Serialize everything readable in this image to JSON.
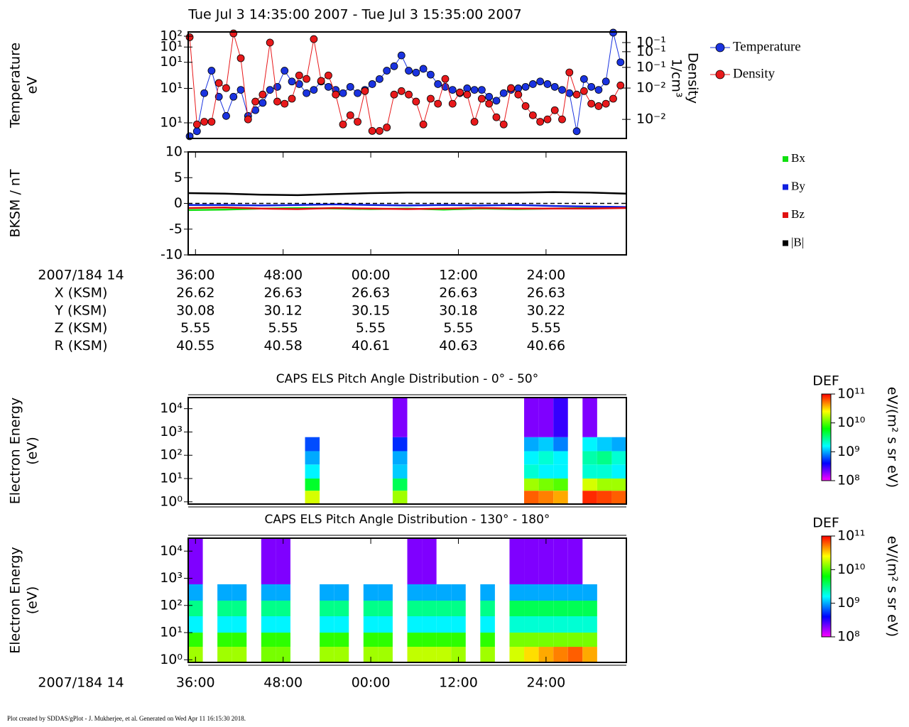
{
  "title": "Tue Jul 3 14:35:00 2007 - Tue Jul 3 15:35:00 2007",
  "footer": "Plot created by SDDAS/gPlot - J. Mukherjee, et al.  Generated on Wed Apr 11 16:15:30 2018.",
  "ephemeris": {
    "time_label": "2007/184 14",
    "rows": [
      {
        "label": "X (KSM)",
        "values": [
          26.62,
          26.63,
          26.63,
          26.63,
          26.63
        ]
      },
      {
        "label": "Y (KSM)",
        "values": [
          30.08,
          30.12,
          30.15,
          30.18,
          30.22
        ]
      },
      {
        "label": "Z (KSM)",
        "values": [
          5.55,
          5.55,
          5.55,
          5.55,
          5.55
        ]
      },
      {
        "label": "R (KSM)",
        "values": [
          40.55,
          40.58,
          40.61,
          40.63,
          40.66
        ]
      }
    ]
  },
  "chart_data": [
    {
      "type": "line",
      "ylabel": [
        "Temperature",
        "eV"
      ],
      "y2label": [
        "Density",
        "1/cm³"
      ],
      "ylog": true,
      "y2log": true,
      "markers": true,
      "legend": "outside-right",
      "xlim": [
        35,
        95
      ],
      "ylim": [
        6.6,
        112
      ],
      "y2lim": [
        0.0043,
        0.48
      ],
      "yticks": [
        {
          "value": 10,
          "label": "10¹"
        },
        {
          "value": 25,
          "label": "10¹"
        },
        {
          "value": 50,
          "label": "10¹"
        },
        {
          "value": 75,
          "label": "10¹"
        },
        {
          "value": 100,
          "label": "10²"
        }
      ],
      "y2ticks": [
        {
          "value": 0.01,
          "label": "10⁻²"
        },
        {
          "value": 0.04,
          "label": "10⁻²"
        },
        {
          "value": 0.1,
          "label": "10⁻¹"
        },
        {
          "value": 0.2,
          "label": "10⁻¹"
        },
        {
          "value": 0.3,
          "label": "10⁻¹"
        }
      ],
      "x": [
        35.2,
        36.2,
        37.2,
        38.2,
        39.2,
        40.2,
        41.2,
        42.2,
        43.2,
        44.2,
        45.2,
        46.2,
        47.2,
        48.2,
        49.2,
        50.2,
        51.2,
        52.2,
        53.2,
        54.2,
        55.2,
        56.2,
        57.2,
        58.2,
        59.2,
        60.2,
        61.2,
        62.2,
        63.2,
        64.2,
        65.2,
        66.2,
        67.2,
        68.2,
        69.2,
        70.2,
        71.2,
        72.2,
        73.2,
        74.2,
        75.2,
        76.2,
        77.2,
        78.2,
        79.2,
        80.2,
        81.2,
        82.2,
        83.2,
        84.2,
        85.2,
        86.2,
        87.2,
        88.2,
        89.2,
        90.2,
        91.2,
        92.2,
        93.2,
        94.2
      ],
      "series": [
        {
          "name": "Temperature",
          "color": "#1a33e0",
          "values": [
            7,
            8,
            22,
            40,
            20,
            12,
            20,
            24,
            12,
            14,
            17,
            24,
            26,
            40,
            30,
            28,
            22,
            24,
            30,
            26,
            24,
            22,
            26,
            22,
            24,
            28,
            32,
            40,
            45,
            60,
            40,
            38,
            42,
            36,
            28,
            26,
            24,
            22,
            25,
            24,
            24,
            20,
            18,
            22,
            24,
            25,
            26,
            28,
            30,
            28,
            26,
            24,
            22,
            8,
            32,
            26,
            24,
            30,
            110,
            50
          ]
        },
        {
          "name": "Density",
          "color": "#e8191b",
          "axis": "y2",
          "values": [
            0.38,
            0.008,
            0.009,
            0.009,
            0.05,
            0.04,
            0.45,
            0.15,
            0.01,
            0.022,
            0.03,
            0.3,
            0.022,
            0.02,
            0.025,
            0.07,
            0.06,
            0.35,
            0.055,
            0.07,
            0.03,
            0.008,
            0.012,
            0.009,
            0.035,
            0.006,
            0.006,
            0.007,
            0.03,
            0.035,
            0.03,
            0.022,
            0.008,
            0.025,
            0.02,
            0.06,
            0.02,
            0.033,
            0.03,
            0.009,
            0.025,
            0.02,
            0.011,
            0.008,
            0.04,
            0.03,
            0.018,
            0.012,
            0.009,
            0.01,
            0.015,
            0.01,
            0.08,
            0.03,
            0.035,
            0.02,
            0.018,
            0.02,
            0.025,
            0.045
          ]
        }
      ]
    },
    {
      "type": "line",
      "ylabel": [
        "BKSM / nT"
      ],
      "zero_line": true,
      "legend": "outside-right",
      "xlim": [
        35,
        95
      ],
      "ylim": [
        -10,
        10
      ],
      "yticks": [
        -10,
        -5,
        0,
        5,
        10
      ],
      "xticks": [
        {
          "value": 36,
          "label": "36:00"
        },
        {
          "value": 48,
          "label": "48:00"
        },
        {
          "value": 60,
          "label": "00:00"
        },
        {
          "value": 72,
          "label": "12:00"
        },
        {
          "value": 84,
          "label": "24:00"
        }
      ],
      "x": [
        35,
        40,
        45,
        50,
        55,
        60,
        65,
        70,
        75,
        80,
        85,
        90,
        95
      ],
      "series": [
        {
          "name": "Bx",
          "color": "#10e010",
          "values": [
            -1.3,
            -1.2,
            -1.0,
            -0.9,
            -1.0,
            -1.1,
            -1.0,
            -1.2,
            -1.0,
            -1.1,
            -1.0,
            -0.9,
            -0.8
          ]
        },
        {
          "name": "By",
          "color": "#1020e0",
          "values": [
            -0.3,
            -0.3,
            -0.4,
            -0.3,
            -0.2,
            -0.3,
            -0.4,
            -0.3,
            -0.4,
            -0.3,
            -0.5,
            -0.6,
            -0.7
          ]
        },
        {
          "name": "Bz",
          "color": "#e01010",
          "values": [
            -0.9,
            -0.8,
            -1.0,
            -1.1,
            -0.9,
            -1.0,
            -1.1,
            -1.0,
            -0.9,
            -1.0,
            -1.0,
            -1.0,
            -0.9
          ]
        },
        {
          "name": "|B|",
          "color": "#000000",
          "values": [
            2.0,
            1.9,
            1.7,
            1.6,
            1.8,
            2.0,
            2.1,
            2.1,
            2.1,
            2.1,
            2.2,
            2.1,
            1.9
          ]
        }
      ]
    },
    {
      "type": "heatmap",
      "title": "CAPS ELS Pitch Angle Distribution - 0° - 50°",
      "ylabel": [
        "Electron Energy",
        "(eV)"
      ],
      "ylog": true,
      "xlim": [
        35,
        95
      ],
      "ylim": [
        0.8,
        30000
      ],
      "yticks": [
        {
          "value": 1,
          "label": "10⁰"
        },
        {
          "value": 10,
          "label": "10¹"
        },
        {
          "value": 100,
          "label": "10²"
        },
        {
          "value": 1000,
          "label": "10³"
        },
        {
          "value": 10000,
          "label": "10⁴"
        }
      ],
      "x_bins": [
        35,
        37,
        39,
        41,
        43,
        45,
        47,
        49,
        51,
        53,
        55,
        57,
        59,
        61,
        63,
        65,
        67,
        69,
        71,
        73,
        75,
        77,
        79,
        81,
        83,
        85,
        87,
        89,
        91,
        93,
        95
      ],
      "y_bins": [
        0.8,
        3,
        10,
        40,
        150,
        600,
        30000
      ],
      "colormap": [
        "#ff00ff",
        "#0000ff",
        "#00ffff",
        "#00ff00",
        "#ffff00",
        "#ff0000"
      ],
      "colorbar": {
        "title": "DEF",
        "label": "eV/(m² s sr eV)",
        "lim": [
          100000000.0,
          100000000000.0
        ],
        "ticks": [
          {
            "value": 100000000.0,
            "label": "10⁸"
          },
          {
            "value": 1000000000.0,
            "label": "10⁹"
          },
          {
            "value": 10000000000.0,
            "label": "10¹⁰"
          },
          {
            "value": 100000000000.0,
            "label": "10¹¹"
          }
        ]
      },
      "values": [
        [
          null,
          null,
          null,
          null,
          null,
          null,
          null,
          null,
          20000000000.0,
          null,
          null,
          null,
          null,
          null,
          15000000000.0,
          null,
          null,
          null,
          null,
          null,
          null,
          null,
          null,
          60000000000.0,
          50000000000.0,
          40000000000.0,
          null,
          80000000000.0,
          70000000000.0,
          60000000000.0
        ],
        [
          null,
          null,
          null,
          null,
          null,
          null,
          null,
          null,
          5000000000.0,
          null,
          null,
          null,
          null,
          null,
          4000000000.0,
          null,
          null,
          null,
          null,
          null,
          null,
          null,
          null,
          15000000000.0,
          12000000000.0,
          10000000000.0,
          null,
          20000000000.0,
          15000000000.0,
          15000000000.0
        ],
        [
          null,
          null,
          null,
          null,
          null,
          null,
          null,
          null,
          1500000000.0,
          null,
          null,
          null,
          null,
          null,
          1200000000.0,
          null,
          null,
          null,
          null,
          null,
          null,
          null,
          null,
          2000000000.0,
          1500000000.0,
          1500000000.0,
          null,
          2000000000.0,
          2000000000.0,
          1500000000.0
        ],
        [
          null,
          null,
          null,
          null,
          null,
          null,
          null,
          null,
          1000000000.0,
          null,
          null,
          null,
          null,
          null,
          1000000000.0,
          null,
          null,
          null,
          null,
          null,
          null,
          null,
          null,
          1500000000.0,
          2000000000.0,
          1500000000.0,
          null,
          2500000000.0,
          3000000000.0,
          2000000000.0
        ],
        [
          null,
          null,
          null,
          null,
          null,
          null,
          null,
          null,
          600000000.0,
          null,
          null,
          null,
          null,
          null,
          500000000.0,
          null,
          null,
          null,
          null,
          null,
          null,
          null,
          null,
          1000000000.0,
          1200000000.0,
          800000000.0,
          null,
          1500000000.0,
          1200000000.0,
          1000000000.0
        ],
        [
          null,
          null,
          null,
          null,
          null,
          null,
          null,
          null,
          null,
          null,
          null,
          null,
          null,
          null,
          200000000.0,
          null,
          null,
          null,
          null,
          null,
          null,
          null,
          null,
          200000000.0,
          200000000.0,
          300000000.0,
          null,
          200000000.0,
          null,
          null
        ]
      ]
    },
    {
      "type": "heatmap",
      "title": "CAPS ELS Pitch Angle Distribution - 130° - 180°",
      "ylabel": [
        "Electron Energy",
        "(eV)"
      ],
      "xlabel": "2007/184 14",
      "ylog": true,
      "xlim": [
        35,
        95
      ],
      "ylim": [
        0.8,
        30000
      ],
      "yticks": [
        {
          "value": 1,
          "label": "10⁰"
        },
        {
          "value": 10,
          "label": "10¹"
        },
        {
          "value": 100,
          "label": "10²"
        },
        {
          "value": 1000,
          "label": "10³"
        },
        {
          "value": 10000,
          "label": "10⁴"
        }
      ],
      "xticks": [
        {
          "value": 36,
          "label": "36:00"
        },
        {
          "value": 48,
          "label": "48:00"
        },
        {
          "value": 60,
          "label": "00:00"
        },
        {
          "value": 72,
          "label": "12:00"
        },
        {
          "value": 84,
          "label": "24:00"
        }
      ],
      "x_bins": [
        35,
        37,
        39,
        41,
        43,
        45,
        47,
        49,
        51,
        53,
        55,
        57,
        59,
        61,
        63,
        65,
        67,
        69,
        71,
        73,
        75,
        77,
        79,
        81,
        83,
        85,
        87,
        89,
        91,
        93,
        95
      ],
      "y_bins": [
        0.8,
        3,
        10,
        40,
        150,
        600,
        30000
      ],
      "colormap": [
        "#ff00ff",
        "#0000ff",
        "#00ffff",
        "#00ff00",
        "#ffff00",
        "#ff0000"
      ],
      "colorbar": {
        "title": "DEF",
        "label": "eV/(m² s sr eV)",
        "lim": [
          100000000.0,
          100000000000.0
        ],
        "ticks": [
          {
            "value": 100000000.0,
            "label": "10⁸"
          },
          {
            "value": 1000000000.0,
            "label": "10⁹"
          },
          {
            "value": 10000000000.0,
            "label": "10¹⁰"
          },
          {
            "value": 100000000000.0,
            "label": "10¹¹"
          }
        ]
      },
      "values": [
        [
          15000000000.0,
          null,
          15000000000.0,
          15000000000.0,
          null,
          12000000000.0,
          12000000000.0,
          null,
          null,
          15000000000.0,
          15000000000.0,
          null,
          15000000000.0,
          15000000000.0,
          null,
          18000000000.0,
          18000000000.0,
          18000000000.0,
          15000000000.0,
          null,
          15000000000.0,
          null,
          20000000000.0,
          30000000000.0,
          40000000000.0,
          50000000000.0,
          60000000000.0,
          40000000000.0,
          null,
          null
        ],
        [
          8000000000.0,
          null,
          8000000000.0,
          8000000000.0,
          null,
          8000000000.0,
          8000000000.0,
          null,
          null,
          8000000000.0,
          8000000000.0,
          null,
          8000000000.0,
          8000000000.0,
          null,
          8000000000.0,
          8000000000.0,
          8000000000.0,
          8000000000.0,
          null,
          8000000000.0,
          null,
          12000000000.0,
          12000000000.0,
          12000000000.0,
          12000000000.0,
          12000000000.0,
          12000000000.0,
          null,
          null
        ],
        [
          1500000000.0,
          null,
          1500000000.0,
          1500000000.0,
          null,
          1500000000.0,
          1500000000.0,
          null,
          null,
          1500000000.0,
          1500000000.0,
          null,
          1500000000.0,
          1500000000.0,
          null,
          1500000000.0,
          1500000000.0,
          1500000000.0,
          1500000000.0,
          null,
          1500000000.0,
          null,
          2000000000.0,
          2000000000.0,
          2000000000.0,
          2000000000.0,
          2000000000.0,
          2000000000.0,
          null,
          null
        ],
        [
          3000000000.0,
          null,
          3000000000.0,
          3000000000.0,
          null,
          3000000000.0,
          3000000000.0,
          null,
          null,
          3000000000.0,
          3000000000.0,
          null,
          3000000000.0,
          3000000000.0,
          null,
          3000000000.0,
          3000000000.0,
          3000000000.0,
          3000000000.0,
          null,
          3000000000.0,
          null,
          4000000000.0,
          4000000000.0,
          4000000000.0,
          4000000000.0,
          4000000000.0,
          4000000000.0,
          null,
          null
        ],
        [
          1000000000.0,
          null,
          1000000000.0,
          1000000000.0,
          null,
          1000000000.0,
          1000000000.0,
          null,
          null,
          1000000000.0,
          1000000000.0,
          null,
          1000000000.0,
          1000000000.0,
          null,
          1000000000.0,
          1000000000.0,
          1000000000.0,
          1000000000.0,
          null,
          1000000000.0,
          null,
          1000000000.0,
          1000000000.0,
          1000000000.0,
          1000000000.0,
          1000000000.0,
          1000000000.0,
          null,
          null
        ],
        [
          200000000.0,
          null,
          null,
          null,
          null,
          200000000.0,
          200000000.0,
          null,
          null,
          null,
          null,
          null,
          null,
          null,
          null,
          200000000.0,
          200000000.0,
          null,
          null,
          null,
          null,
          null,
          200000000.0,
          200000000.0,
          200000000.0,
          200000000.0,
          200000000.0,
          null,
          null,
          null
        ]
      ]
    }
  ]
}
